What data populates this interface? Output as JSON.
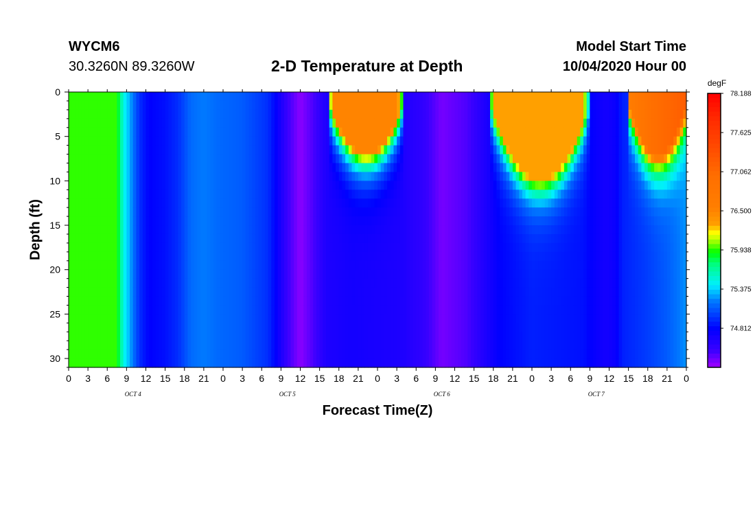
{
  "header": {
    "station": "WYCM6",
    "coords": "30.3260N 89.3260W",
    "title": "2-D Temperature at Depth",
    "model_start_label": "Model Start Time",
    "model_start_value": "10/04/2020 Hour 00"
  },
  "chart_data": {
    "type": "heatmap",
    "title": "2-D Temperature at Depth",
    "xlabel": "Forecast Time(Z)",
    "ylabel": "Depth (ft)",
    "x_ticks": [
      "0",
      "3",
      "6",
      "9",
      "12",
      "15",
      "18",
      "21",
      "0",
      "3",
      "6",
      "9",
      "12",
      "15",
      "18",
      "21",
      "0",
      "3",
      "6",
      "9",
      "12",
      "15",
      "18",
      "21",
      "0",
      "3",
      "6",
      "9",
      "12",
      "15",
      "18",
      "21",
      "0"
    ],
    "x_range_hours": [
      0,
      96
    ],
    "date_labels": [
      "OCT 4",
      "OCT 5",
      "OCT 6",
      "OCT 7"
    ],
    "y_ticks": [
      "0",
      "5",
      "10",
      "15",
      "20",
      "25",
      "30"
    ],
    "y_range_ft": [
      0,
      31
    ],
    "y_inverted": true,
    "colorbar": {
      "unit": "degF",
      "min": 74.25,
      "max": 78.188,
      "labels": [
        "78.188",
        "77.625",
        "77.062",
        "76.500",
        "75.938",
        "75.375",
        "74.812"
      ],
      "colors": [
        "#ff0000",
        "#ff3a00",
        "#ff6a00",
        "#ff7f00",
        "#ffff00",
        "#00ff00",
        "#00ffff",
        "#0080ff",
        "#0000ff",
        "#a000ff"
      ]
    },
    "surface_profile_degF": [
      {
        "h": 0,
        "t": 75.95
      },
      {
        "h": 7.5,
        "t": 75.95
      },
      {
        "h": 8.5,
        "t": 75.5
      },
      {
        "h": 9.5,
        "t": 75.3
      },
      {
        "h": 11,
        "t": 74.95
      },
      {
        "h": 12.5,
        "t": 74.8
      },
      {
        "h": 15,
        "t": 74.85
      },
      {
        "h": 17,
        "t": 74.95
      },
      {
        "h": 19,
        "t": 75.2
      },
      {
        "h": 21,
        "t": 75.5
      },
      {
        "h": 23,
        "t": 75.15
      },
      {
        "h": 27,
        "t": 75.1
      },
      {
        "h": 31,
        "t": 74.95
      },
      {
        "h": 32.5,
        "t": 74.75
      },
      {
        "h": 34,
        "t": 74.5
      },
      {
        "h": 36,
        "t": 74.3
      },
      {
        "h": 37,
        "t": 74.3
      },
      {
        "h": 39,
        "t": 74.45
      },
      {
        "h": 40,
        "t": 75.0
      },
      {
        "h": 41,
        "t": 76.5
      },
      {
        "h": 51,
        "t": 76.5
      },
      {
        "h": 53,
        "t": 75.0
      },
      {
        "h": 54,
        "t": 74.6
      },
      {
        "h": 56,
        "t": 74.45
      },
      {
        "h": 58,
        "t": 74.35
      },
      {
        "h": 62,
        "t": 74.45
      },
      {
        "h": 64,
        "t": 74.6
      },
      {
        "h": 65,
        "t": 75.0
      },
      {
        "h": 66,
        "t": 76.3
      },
      {
        "h": 80,
        "t": 76.3
      },
      {
        "h": 81,
        "t": 75.3
      },
      {
        "h": 82,
        "t": 74.95
      },
      {
        "h": 84,
        "t": 74.7
      },
      {
        "h": 85,
        "t": 74.75
      },
      {
        "h": 86,
        "t": 75.1
      },
      {
        "h": 87,
        "t": 76.6
      },
      {
        "h": 91,
        "t": 77.0
      },
      {
        "h": 96,
        "t": 77.2
      }
    ],
    "deep_profile_degF": [
      {
        "h": 0,
        "t": 75.95
      },
      {
        "h": 7.5,
        "t": 75.95
      },
      {
        "h": 8.5,
        "t": 75.5
      },
      {
        "h": 9.5,
        "t": 75.3
      },
      {
        "h": 11,
        "t": 74.95
      },
      {
        "h": 12.5,
        "t": 74.8
      },
      {
        "h": 15,
        "t": 74.85
      },
      {
        "h": 17,
        "t": 74.95
      },
      {
        "h": 19,
        "t": 75.15
      },
      {
        "h": 21,
        "t": 75.2
      },
      {
        "h": 23,
        "t": 75.15
      },
      {
        "h": 27,
        "t": 75.1
      },
      {
        "h": 31,
        "t": 74.95
      },
      {
        "h": 32.5,
        "t": 74.75
      },
      {
        "h": 34,
        "t": 74.5
      },
      {
        "h": 36,
        "t": 74.3
      },
      {
        "h": 38,
        "t": 74.45
      },
      {
        "h": 40,
        "t": 74.65
      },
      {
        "h": 44,
        "t": 74.7
      },
      {
        "h": 52,
        "t": 74.65
      },
      {
        "h": 55,
        "t": 74.55
      },
      {
        "h": 58,
        "t": 74.35
      },
      {
        "h": 62,
        "t": 74.45
      },
      {
        "h": 64,
        "t": 74.6
      },
      {
        "h": 67,
        "t": 74.8
      },
      {
        "h": 72,
        "t": 74.9
      },
      {
        "h": 80,
        "t": 74.85
      },
      {
        "h": 82,
        "t": 74.75
      },
      {
        "h": 83.5,
        "t": 74.7
      },
      {
        "h": 85,
        "t": 74.75
      },
      {
        "h": 86,
        "t": 74.9
      },
      {
        "h": 90,
        "t": 75.0
      },
      {
        "h": 93,
        "t": 75.1
      },
      {
        "h": 96,
        "t": 75.25
      }
    ],
    "warm_layers": [
      {
        "h0": 40.5,
        "h1": 52,
        "max_depth_ft": 7
      },
      {
        "h0": 65.5,
        "h1": 81,
        "max_depth_ft": 10
      },
      {
        "h0": 87,
        "h1": 96,
        "max_depth_ft": 7
      }
    ]
  }
}
